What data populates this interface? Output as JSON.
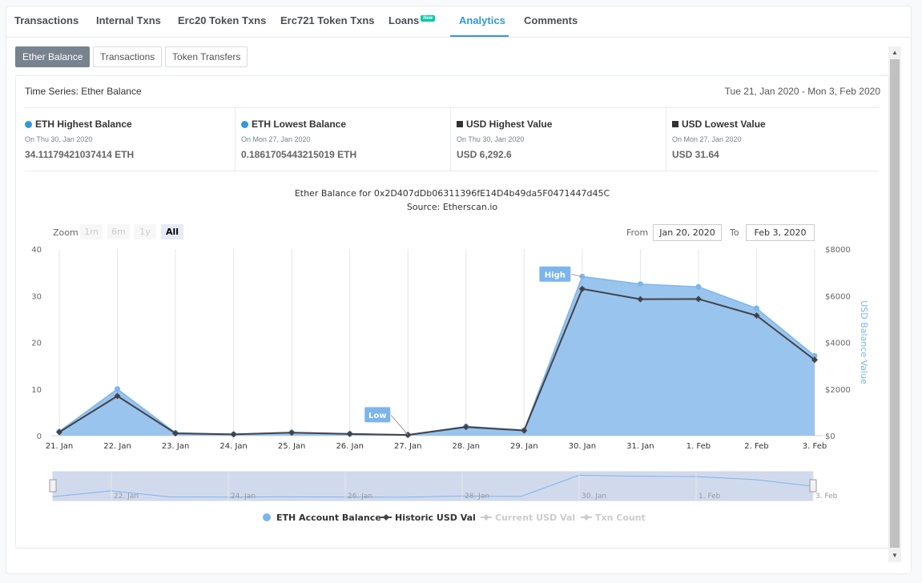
{
  "tabs": [
    {
      "label": "Transactions",
      "active": false
    },
    {
      "label": "Internal Txns",
      "active": false
    },
    {
      "label": "Erc20 Token Txns",
      "active": false
    },
    {
      "label": "Erc721 Token Txns",
      "active": false
    },
    {
      "label": "Loans",
      "active": false
    },
    {
      "label": "Analytics",
      "active": true
    },
    {
      "label": "Comments",
      "active": false
    }
  ],
  "new_badge": "New",
  "subtabs": [
    {
      "label": "Ether Balance",
      "active": true
    },
    {
      "label": "Transactions",
      "active": false
    },
    {
      "label": "Token Transfers",
      "active": false
    }
  ],
  "timeseries": {
    "title": "Time Series: Ether Balance",
    "range": "Tue 21, Jan 2020 - Mon 3, Feb 2020"
  },
  "stats": [
    {
      "title": "ETH Highest Balance",
      "date": "On Thu 30, Jan 2020",
      "value": "34.11179421037414 ETH"
    },
    {
      "title": "ETH Lowest Balance",
      "date": "On Mon 27, Jan 2020",
      "value": "0.1861705443215019 ETH"
    },
    {
      "title": "USD Highest Value",
      "date": "On Thu 30, Jan 2020",
      "value": "USD 6,292.6"
    },
    {
      "title": "USD Lowest Value",
      "date": "On Mon 27, Jan 2020",
      "value": "USD 31.64"
    }
  ],
  "zoom": {
    "label": "Zoom",
    "buttons": [
      "1m",
      "6m",
      "1y",
      "All"
    ],
    "active": "All"
  },
  "range": {
    "from_label": "From",
    "from_value": "Jan 20, 2020",
    "to_label": "To",
    "to_value": "Feb 3, 2020"
  },
  "colors": {
    "eth_area": "#99c4ee",
    "eth_line": "#7cb5ec",
    "usd_line": "#434348",
    "accent": "#3498db"
  },
  "chart_data": {
    "type": "area",
    "title": "Ether Balance for 0x2D407dDb06311396fE14D4b49da5F0471447d45C",
    "subtitle": "Source: Etherscan.io",
    "categories": [
      "21. Jan",
      "22. Jan",
      "23. Jan",
      "24. Jan",
      "25. Jan",
      "26. Jan",
      "27. Jan",
      "28. Jan",
      "29. Jan",
      "30. Jan",
      "31. Jan",
      "1. Feb",
      "2. Feb",
      "3. Feb"
    ],
    "y_left": {
      "ticks": [
        "0",
        "10",
        "20",
        "30",
        "40"
      ],
      "ylim": [
        0,
        40
      ]
    },
    "y_right": {
      "label": "USD Balance Value",
      "ticks": [
        "$0",
        "$2000",
        "$4000",
        "$6000",
        "$8000"
      ],
      "ylim": [
        0,
        8000
      ]
    },
    "series": [
      {
        "name": "ETH Account Balance",
        "type": "area",
        "values": [
          0.9,
          10.0,
          0.6,
          0.3,
          0.7,
          0.4,
          0.19,
          2.0,
          1.2,
          34.11,
          32.5,
          31.9,
          27.3,
          17.1
        ]
      },
      {
        "name": "Historic USD Val",
        "type": "line",
        "values": [
          150,
          1700,
          100,
          55,
          130,
          75,
          31.64,
          370,
          220,
          6292.6,
          5850,
          5860,
          5150,
          3250
        ]
      }
    ],
    "annotations": [
      {
        "text": "High",
        "point_index": 9
      },
      {
        "text": "Low",
        "point_index": 6
      }
    ],
    "navigator_labels": [
      "22. Jan",
      "24. Jan",
      "26. Jan",
      "28. Jan",
      "30. Jan",
      "1. Feb",
      "3. Feb"
    ],
    "legend": {
      "placement": "bottom-center",
      "items": [
        {
          "label": "ETH Account Balance",
          "enabled": true
        },
        {
          "label": "Historic USD Val",
          "enabled": true
        },
        {
          "label": "Current USD Val",
          "enabled": false
        },
        {
          "label": "Txn Count",
          "enabled": false
        }
      ]
    }
  }
}
